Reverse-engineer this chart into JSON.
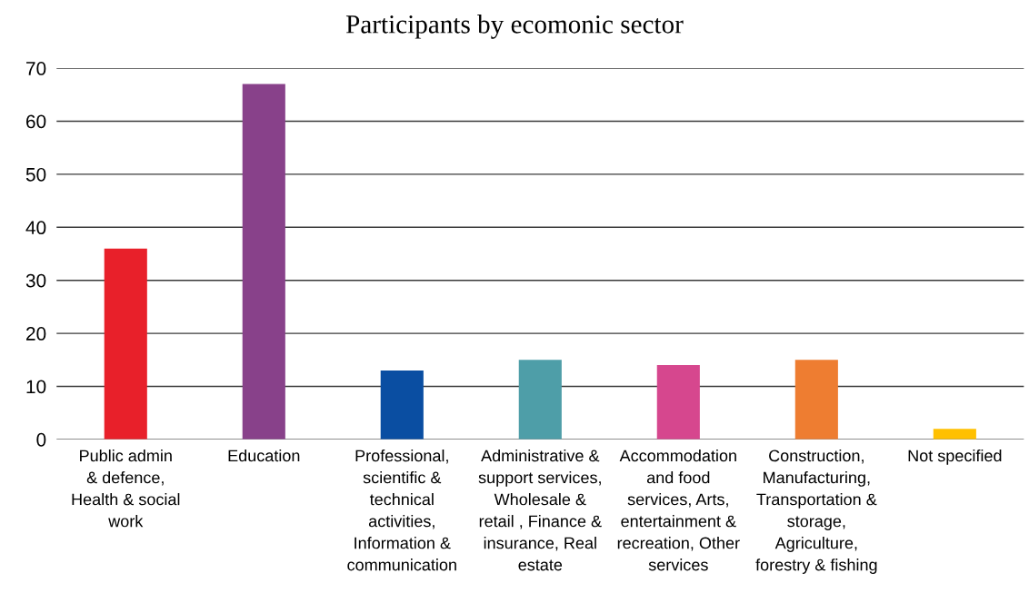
{
  "chart_data": {
    "type": "bar",
    "title": "Participants by ecomonic sector",
    "categories": [
      "Public admin\n& defence,\nHealth & social\nwork",
      "Education",
      "Professional,\nscientific &\ntechnical\nactivities,\nInformation &\ncommunication",
      "Administrative &\nsupport services,\nWholesale &\nretail , Finance &\ninsurance, Real\nestate",
      "Accommodation\nand food\nservices, Arts,\nentertainment &\nrecreation, Other\nservices",
      "Construction,\nManufacturing,\nTransportation &\nstorage,\nAgriculture,\nforestry & fishing",
      "Not specified"
    ],
    "values": [
      36,
      67,
      13,
      15,
      14,
      15,
      2
    ],
    "colors": [
      "#e8202a",
      "#88418a",
      "#0a4ea2",
      "#4e9ea8",
      "#d6478e",
      "#ee7d31",
      "#ffc000"
    ],
    "ylim": [
      0,
      70
    ],
    "yticks": [
      0,
      10,
      20,
      30,
      40,
      50,
      60,
      70
    ],
    "grid": "y"
  }
}
